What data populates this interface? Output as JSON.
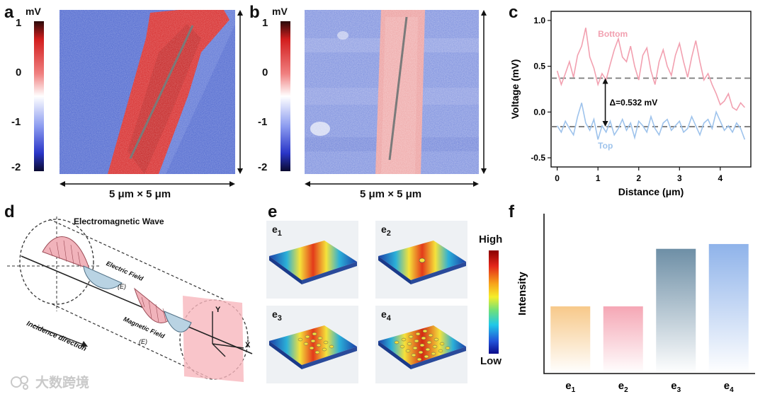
{
  "panels": {
    "a": {
      "label": "a",
      "unit": "mV",
      "ticks": [
        "1",
        "0",
        "-1",
        "-2"
      ],
      "scale": "5 μm × 5 μm"
    },
    "b": {
      "label": "b",
      "unit": "mV",
      "ticks": [
        "1",
        "0",
        "-1",
        "-2"
      ],
      "scale": "5 μm × 5 μm"
    },
    "c": {
      "label": "c"
    },
    "d": {
      "label": "d",
      "title": "Electromagnetic Wave",
      "electric": "Electric Field",
      "electric_sym": "(E)",
      "magnetic": "Magnetic Field",
      "magnetic_sym": "(E)",
      "incidence": "Incidence direction",
      "x_axis": "X",
      "y_axis": "Y"
    },
    "e": {
      "label": "e",
      "tiles": [
        {
          "base": "e",
          "sub": "1"
        },
        {
          "base": "e",
          "sub": "2"
        },
        {
          "base": "e",
          "sub": "3"
        },
        {
          "base": "e",
          "sub": "4"
        }
      ],
      "colorbar_high": "High",
      "colorbar_low": "Low"
    },
    "f": {
      "label": "f"
    }
  },
  "watermark": "大数跨境",
  "chart_data": [
    {
      "type": "line",
      "title": "",
      "xlabel": "Distance (μm)",
      "ylabel": "Voltage (mV)",
      "xlim": [
        -0.15,
        4.75
      ],
      "ylim": [
        -0.6,
        1.1
      ],
      "xticks": [
        "0",
        "1",
        "2",
        "3",
        "4"
      ],
      "yticks": [
        "1.0",
        "0.5",
        "0.0",
        "-0.5"
      ],
      "series": [
        {
          "name": "Bottom",
          "color": "#f2a0b0",
          "x": [
            0.0,
            0.1,
            0.2,
            0.3,
            0.4,
            0.5,
            0.6,
            0.7,
            0.8,
            0.9,
            1.0,
            1.1,
            1.2,
            1.3,
            1.4,
            1.5,
            1.6,
            1.7,
            1.8,
            1.9,
            2.0,
            2.1,
            2.2,
            2.3,
            2.4,
            2.5,
            2.6,
            2.7,
            2.8,
            2.9,
            3.0,
            3.1,
            3.2,
            3.3,
            3.4,
            3.5,
            3.6,
            3.7,
            3.8,
            3.9,
            4.0,
            4.1,
            4.2,
            4.3,
            4.4,
            4.5,
            4.6
          ],
          "values": [
            0.45,
            0.3,
            0.42,
            0.55,
            0.38,
            0.62,
            0.72,
            0.92,
            0.6,
            0.48,
            0.3,
            0.42,
            0.35,
            0.52,
            0.68,
            0.8,
            0.6,
            0.55,
            0.72,
            0.5,
            0.35,
            0.62,
            0.7,
            0.45,
            0.3,
            0.55,
            0.68,
            0.5,
            0.4,
            0.62,
            0.75,
            0.55,
            0.38,
            0.6,
            0.78,
            0.55,
            0.35,
            0.42,
            0.3,
            0.2,
            0.08,
            0.12,
            0.2,
            0.05,
            0.02,
            0.1,
            0.05
          ]
        },
        {
          "name": "Top",
          "color": "#9ec3ec",
          "x": [
            0.0,
            0.1,
            0.2,
            0.3,
            0.4,
            0.5,
            0.6,
            0.7,
            0.8,
            0.9,
            1.0,
            1.1,
            1.2,
            1.3,
            1.4,
            1.5,
            1.6,
            1.7,
            1.8,
            1.9,
            2.0,
            2.1,
            2.2,
            2.3,
            2.4,
            2.5,
            2.6,
            2.7,
            2.8,
            2.9,
            3.0,
            3.1,
            3.2,
            3.3,
            3.4,
            3.5,
            3.6,
            3.7,
            3.8,
            3.9,
            4.0,
            4.1,
            4.2,
            4.3,
            4.4,
            4.5,
            4.6
          ],
          "values": [
            -0.15,
            -0.22,
            -0.1,
            -0.18,
            -0.25,
            -0.05,
            0.1,
            -0.12,
            -0.2,
            -0.08,
            -0.3,
            -0.15,
            -0.22,
            -0.1,
            -0.25,
            -0.18,
            -0.08,
            -0.2,
            -0.12,
            -0.28,
            -0.1,
            -0.15,
            -0.22,
            -0.05,
            -0.18,
            -0.25,
            -0.12,
            -0.08,
            -0.2,
            -0.15,
            -0.1,
            -0.22,
            -0.18,
            -0.05,
            -0.15,
            -0.25,
            -0.12,
            -0.08,
            -0.18,
            0.0,
            -0.1,
            -0.2,
            -0.15,
            -0.22,
            -0.12,
            -0.18,
            -0.3
          ]
        }
      ],
      "reference_lines": [
        0.37,
        -0.16
      ],
      "annotation": "Δ=0.532 mV",
      "legend": [
        "Bottom",
        "Top"
      ]
    },
    {
      "type": "bar",
      "title": "",
      "xlabel": "",
      "ylabel": "Intensity",
      "ylim": [
        0,
        1
      ],
      "categories": [
        {
          "base": "e",
          "sub": "1"
        },
        {
          "base": "e",
          "sub": "2"
        },
        {
          "base": "e",
          "sub": "3"
        },
        {
          "base": "e",
          "sub": "4"
        }
      ],
      "values": [
        0.42,
        0.42,
        0.78,
        0.81
      ],
      "colors": [
        "#f7c98a",
        "#f5a7b5",
        "#6e8fa6",
        "#8fb3ea"
      ]
    }
  ]
}
